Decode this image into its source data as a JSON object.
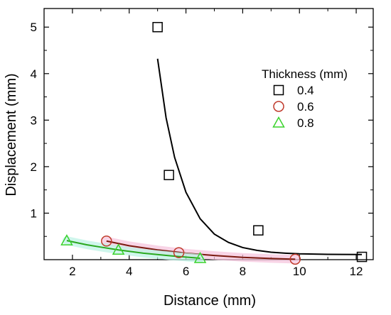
{
  "chart_data": {
    "type": "scatter",
    "xlabel": "Distance (mm)",
    "ylabel": "Displacement (mm)",
    "xlim": [
      1,
      12.6
    ],
    "ylim": [
      0,
      5.4
    ],
    "xticks": [
      2,
      4,
      6,
      8,
      10,
      12
    ],
    "yticks": [
      1,
      2,
      3,
      4,
      5
    ],
    "grid": false,
    "legend": {
      "title": "Thickness (mm)",
      "placement": "top-right"
    },
    "series": [
      {
        "name": "0.4",
        "marker": "square",
        "color": "#000000",
        "points": [
          [
            5.0,
            5.0
          ],
          [
            5.4,
            1.82
          ],
          [
            8.55,
            0.63
          ],
          [
            12.2,
            0.06
          ]
        ],
        "fit": {
          "color": "#000000",
          "x": [
            5.0,
            5.3,
            5.6,
            6.0,
            6.5,
            7.0,
            7.5,
            8.0,
            8.5,
            9.0,
            9.5,
            10.0,
            10.5,
            11.0,
            11.5,
            12.2
          ],
          "y": [
            4.32,
            3.05,
            2.2,
            1.45,
            0.88,
            0.55,
            0.37,
            0.26,
            0.2,
            0.16,
            0.14,
            0.125,
            0.12,
            0.115,
            0.112,
            0.11
          ]
        }
      },
      {
        "name": "0.6",
        "marker": "circle",
        "color": "#c0392b",
        "points": [
          [
            3.2,
            0.4
          ],
          [
            5.75,
            0.15
          ],
          [
            9.85,
            0.01
          ]
        ],
        "fit": {
          "color": "#7b1a10",
          "x": [
            3.2,
            4.0,
            5.0,
            6.0,
            7.0,
            8.0,
            9.0,
            9.85
          ],
          "y": [
            0.4,
            0.3,
            0.21,
            0.14,
            0.09,
            0.05,
            0.025,
            0.01
          ]
        }
      },
      {
        "name": "0.8",
        "marker": "triangle",
        "color": "#39d22b",
        "points": [
          [
            1.8,
            0.41
          ],
          [
            3.62,
            0.21
          ],
          [
            6.5,
            0.03
          ]
        ],
        "fit": {
          "color": "#2aa81f",
          "x": [
            1.8,
            2.5,
            3.0,
            3.62,
            4.5,
            5.5,
            6.5
          ],
          "y": [
            0.41,
            0.32,
            0.27,
            0.21,
            0.14,
            0.08,
            0.03
          ]
        }
      }
    ]
  }
}
